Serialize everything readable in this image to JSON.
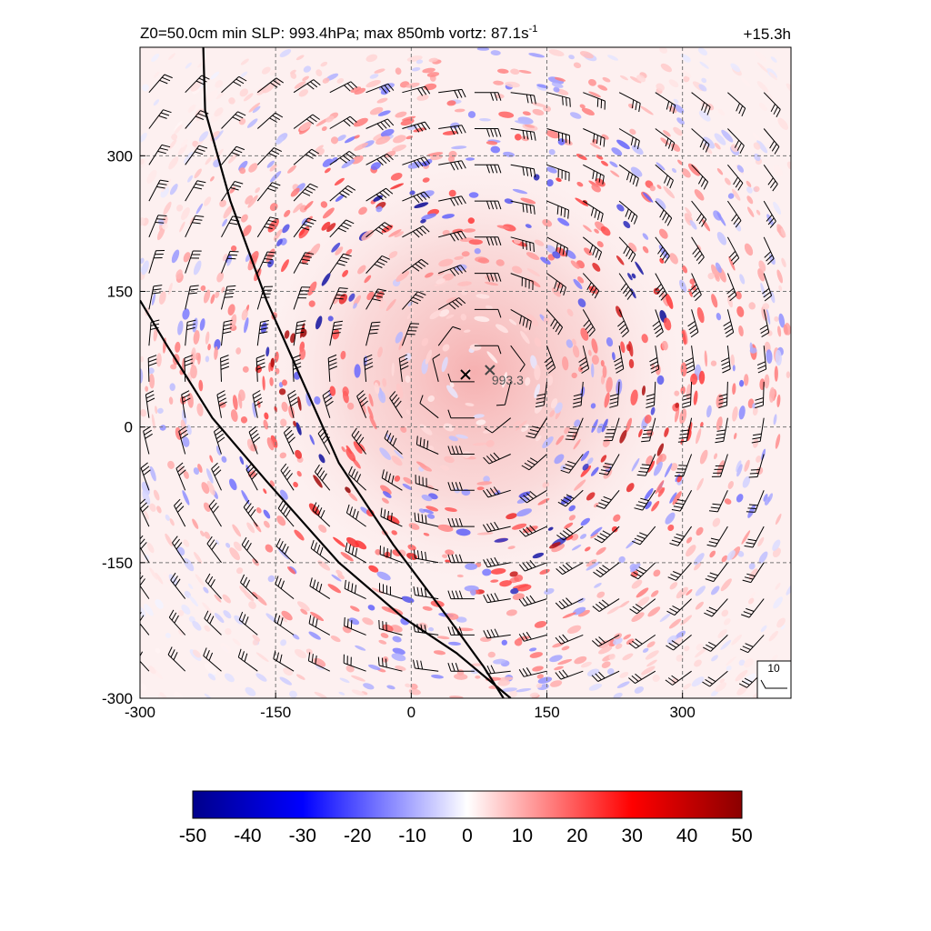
{
  "header": {
    "title_parts": {
      "prefix": "Z0=50.0cm  min SLP: 993.4hPa; max 850mb vortz:  87.1s",
      "exponent": "-1"
    },
    "forecast_time": "+15.3h"
  },
  "chart_data": {
    "type": "heatmap",
    "title": "Z0=50.0cm  min SLP: 993.4hPa; max 850mb vortz:  87.1s-1",
    "xlabel": "",
    "ylabel": "",
    "xlim": [
      -300,
      420
    ],
    "ylim": [
      -300,
      420
    ],
    "x_ticks": [
      -300,
      -150,
      0,
      150,
      300
    ],
    "y_ticks": [
      -300,
      -150,
      0,
      150,
      300
    ],
    "x_tick_labels": [
      "-300",
      "-150",
      "0",
      "150",
      "300"
    ],
    "y_tick_labels": [
      "-300",
      "-150",
      "0",
      "150",
      "300"
    ],
    "grid": "dashed",
    "colorbar": {
      "min": -50,
      "max": 50,
      "ticks": [
        -50,
        -40,
        -30,
        -20,
        -10,
        0,
        10,
        20,
        30,
        40,
        50
      ],
      "tick_labels": [
        "-50",
        "-40",
        "-30",
        "-20",
        "-10",
        "0",
        "10",
        "20",
        "30",
        "40",
        "50"
      ],
      "colors": [
        "#00008b",
        "#0000ff",
        "#ffffff",
        "#ff0000",
        "#8b0000"
      ]
    },
    "center_markers": [
      {
        "x": 60,
        "y": 58,
        "label": ""
      },
      {
        "x": 87,
        "y": 63,
        "label": "993.3"
      }
    ],
    "storm_center": [
      70,
      60
    ],
    "coastlines": [
      [
        [
          -230,
          420
        ],
        [
          -228,
          350
        ],
        [
          -200,
          250
        ],
        [
          -160,
          140
        ],
        [
          -120,
          50
        ],
        [
          -80,
          -40
        ],
        [
          -20,
          -130
        ],
        [
          40,
          -210
        ],
        [
          80,
          -265
        ],
        [
          102,
          -300
        ]
      ],
      [
        [
          -300,
          140
        ],
        [
          -270,
          90
        ],
        [
          -220,
          10
        ],
        [
          -160,
          -60
        ],
        [
          -80,
          -150
        ],
        [
          -10,
          -210
        ],
        [
          50,
          -250
        ],
        [
          110,
          -300
        ]
      ]
    ],
    "wind_barb_reference": {
      "label": "10"
    },
    "annotations": [
      "+15.3h",
      "993.3",
      "10"
    ]
  }
}
